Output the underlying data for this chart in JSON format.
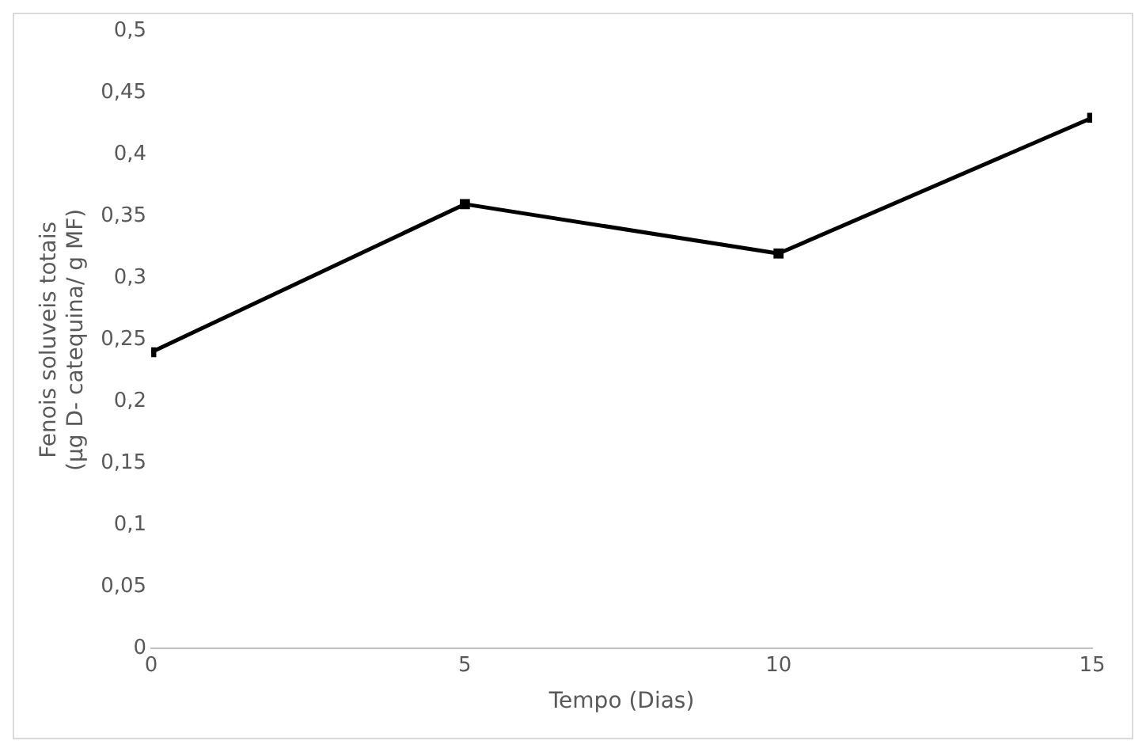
{
  "chart_data": {
    "type": "line",
    "xlabel": "Tempo (Dias)",
    "ylabel": "Fenois soluveis totais\n(µg D- catequina/ g MF)",
    "x": [
      0,
      5,
      10,
      15
    ],
    "series": [
      {
        "color": "#000000",
        "values": [
          0.24,
          0.36,
          0.32,
          0.43
        ]
      }
    ],
    "xlim": [
      0,
      15
    ],
    "xticks": [
      0,
      5,
      10,
      15
    ],
    "ylim": [
      0,
      0.5
    ],
    "yticks": [
      {
        "value": 0,
        "label": "0"
      },
      {
        "value": 0.05,
        "label": "0,05"
      },
      {
        "value": 0.1,
        "label": "0,1"
      },
      {
        "value": 0.15,
        "label": "0,15"
      },
      {
        "value": 0.2,
        "label": "0,2"
      },
      {
        "value": 0.25,
        "label": "0,25"
      },
      {
        "value": 0.3,
        "label": "0,3"
      },
      {
        "value": 0.35,
        "label": "0,35"
      },
      {
        "value": 0.4,
        "label": "0,4"
      },
      {
        "value": 0.45,
        "label": "0,45"
      },
      {
        "value": 0.5,
        "label": "0,5"
      }
    ],
    "grid": false,
    "legend": false,
    "marker": "square",
    "line_style": "solid"
  }
}
